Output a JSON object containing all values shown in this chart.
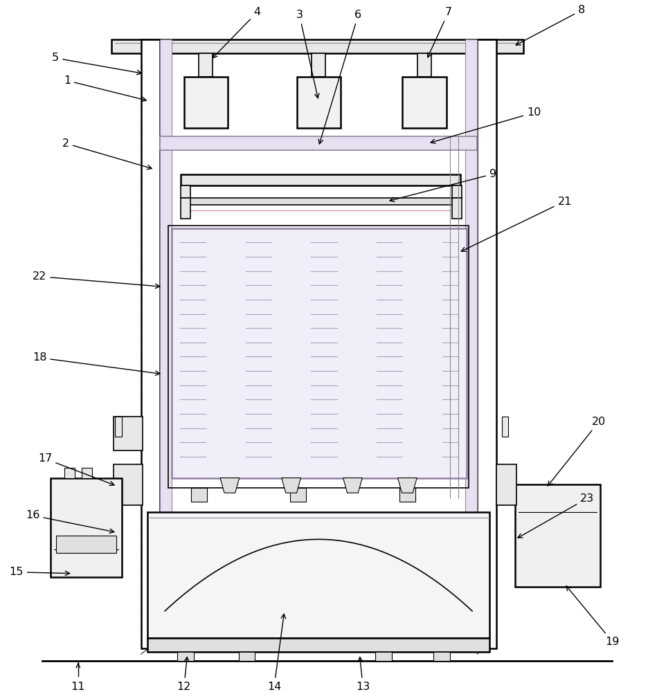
{
  "bg_color": "#ffffff",
  "line_color": "#000000",
  "fig_width": 9.37,
  "fig_height": 10.0,
  "dpi": 100
}
